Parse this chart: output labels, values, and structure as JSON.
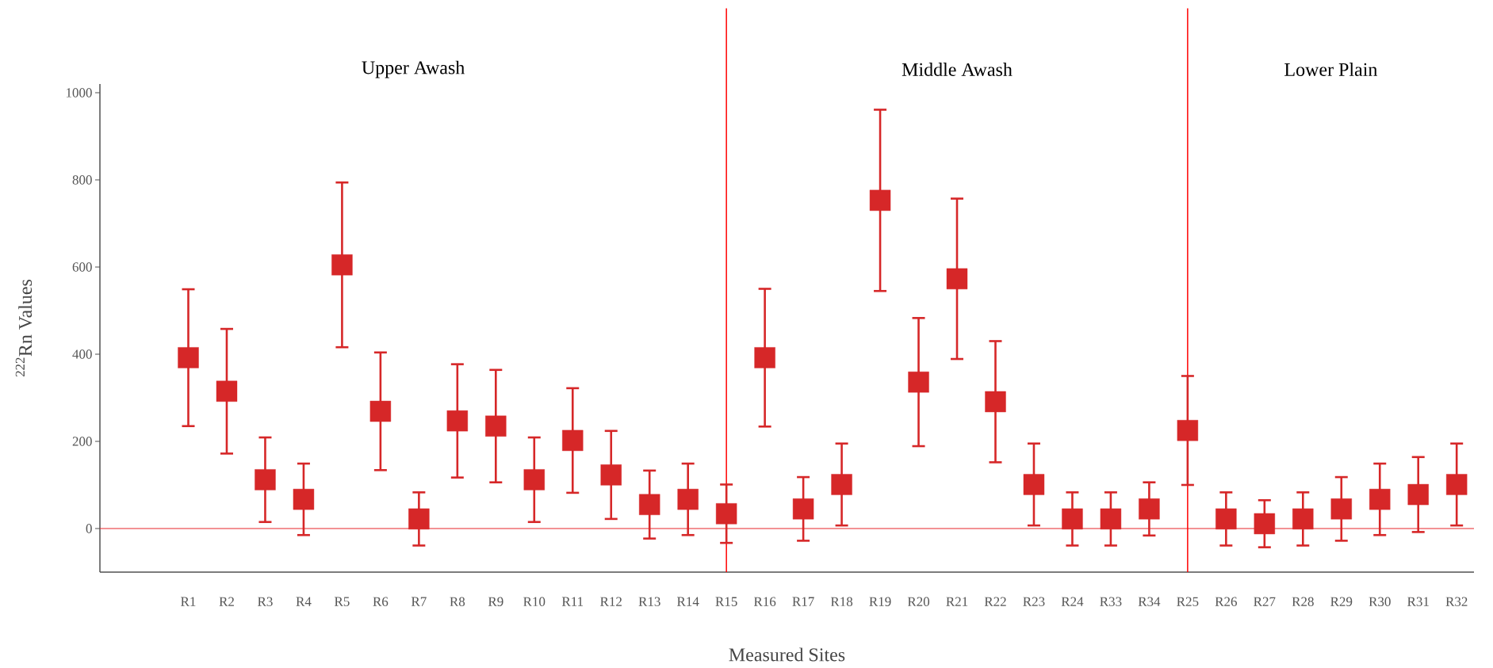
{
  "chart_data": {
    "type": "scatter",
    "xlabel": "Measured Sites",
    "ylabel": "$^{222}$Rn Values",
    "categories": [
      "R1",
      "R2",
      "R3",
      "R4",
      "R5",
      "R6",
      "R7",
      "R8",
      "R9",
      "R10",
      "R11",
      "R12",
      "R13",
      "R14",
      "R15",
      "R16",
      "R17",
      "R18",
      "R19",
      "R20",
      "R21",
      "R22",
      "R23",
      "R24",
      "R33",
      "R34",
      "R25",
      "R26",
      "R27",
      "R28",
      "R29",
      "R30",
      "R31",
      "R32"
    ],
    "series": [
      {
        "color": "#d62728",
        "values": [
          392,
          315,
          112,
          67,
          605,
          269,
          22,
          247,
          235,
          112,
          202,
          123,
          55,
          67,
          34,
          392,
          45,
          101,
          753,
          336,
          573,
          291,
          101,
          22,
          22,
          45,
          225,
          22,
          11,
          22,
          45,
          67,
          78,
          101
        ],
        "errors": [
          157,
          143,
          97,
          82,
          189,
          135,
          61,
          130,
          129,
          97,
          120,
          101,
          78,
          82,
          67,
          158,
          73,
          94,
          208,
          147,
          184,
          139,
          94,
          61,
          61,
          61,
          125,
          61,
          54,
          61,
          73,
          82,
          86,
          94
        ]
      }
    ],
    "marker": "square",
    "ylim": [
      -100,
      1020
    ],
    "yticks": [
      0,
      200,
      400,
      600,
      800,
      1000
    ],
    "ref_lines": [
      {
        "axis": "y",
        "value": 0,
        "color": "#e8262b"
      },
      {
        "axis": "x",
        "value": "R15",
        "color": "#ff0000"
      },
      {
        "axis": "x",
        "value": "R25",
        "color": "#ff0000"
      }
    ],
    "annotations": [
      "Upper Awash",
      "Middle Awash",
      "Lower Plain"
    ]
  }
}
